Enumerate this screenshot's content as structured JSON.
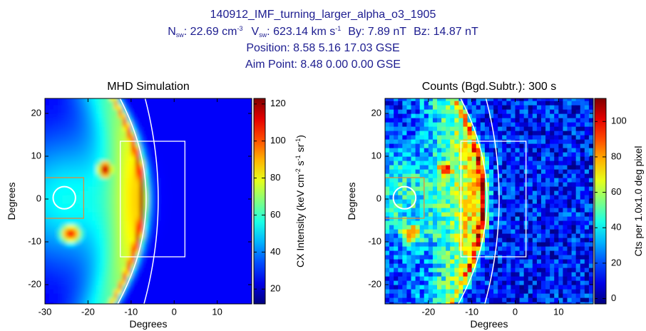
{
  "header": {
    "title": "140912_IMF_turning_larger_alpha_o3_1905",
    "line2": [
      "N",
      "sw",
      ": 22.69 cm",
      "-3",
      "V",
      "sw",
      ": 623.14 km s",
      "-1",
      "By: 7.89 nT",
      "Bz: 14.87 nT"
    ],
    "line3": "Position: 8.58  5.16  17.03  GSE",
    "line4": "Aim Point: 8.48  0.00  0.00  GSE"
  },
  "chart_data": [
    {
      "type": "heatmap",
      "title": "MHD Simulation",
      "xlabel": "Degrees",
      "ylabel": "Degrees",
      "xlim": [
        -30,
        18
      ],
      "ylim": [
        -24.5,
        23.5
      ],
      "xticks": [
        -30,
        -20,
        -10,
        0,
        10
      ],
      "yticks": [
        -20,
        -10,
        0,
        10,
        20
      ],
      "smooth": true,
      "colorbar": {
        "lim": [
          12,
          123
        ],
        "ticks": [
          20,
          40,
          60,
          80,
          100,
          120
        ],
        "label": [
          "CX Intensity (keV cm",
          "-2",
          " s",
          "-1",
          " sr",
          "-1",
          ")"
        ]
      }
    },
    {
      "type": "heatmap",
      "title": "Counts (Bgd.Subtr.): 300 s",
      "xlabel": "Degrees",
      "ylabel": "Degrees",
      "xlim": [
        -30,
        18
      ],
      "ylim": [
        -24.5,
        23.5
      ],
      "xticks": [
        -20,
        -10,
        0,
        10
      ],
      "yticks": [
        -20,
        -10,
        0,
        10,
        20
      ],
      "smooth": false,
      "colorbar": {
        "lim": [
          -3,
          113
        ],
        "ticks": [
          0,
          20,
          40,
          60,
          80,
          100
        ],
        "label": [
          "Cts per 1.0x1.0 deg pixel"
        ]
      }
    }
  ]
}
